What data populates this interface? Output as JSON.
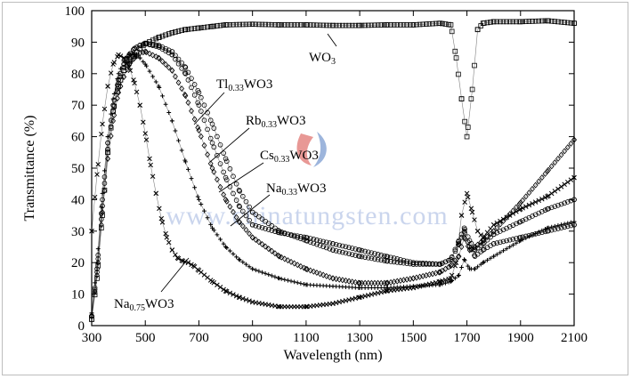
{
  "chart_data": {
    "type": "scatter",
    "xlabel": "Wavelength (nm)",
    "ylabel": "Transmittance (%)",
    "xlim": [
      300,
      2100
    ],
    "ylim": [
      0,
      100
    ],
    "xticks": [
      300,
      500,
      700,
      900,
      1100,
      1300,
      1500,
      1700,
      1900,
      2100
    ],
    "yticks": [
      0,
      10,
      20,
      30,
      40,
      50,
      60,
      70,
      80,
      90,
      100
    ],
    "grid": false,
    "legend": "none",
    "watermark": "www.chinatungsten.com",
    "annotations": [
      {
        "base": "WO",
        "sub": "",
        "tail": "3"
      },
      {
        "base": "Tl",
        "sub": "0.33",
        "tail": "WO3"
      },
      {
        "base": "Rb",
        "sub": "0.33",
        "tail": "WO3"
      },
      {
        "base": "Cs",
        "sub": "0.33",
        "tail": "WO3"
      },
      {
        "base": "Na",
        "sub": "0.33",
        "tail": "WO3"
      },
      {
        "base": "Na",
        "sub": "0.75",
        "tail": "WO3"
      }
    ],
    "series": [
      {
        "name": "WO3",
        "marker": "square",
        "x": [
          300,
          320,
          340,
          360,
          380,
          400,
          420,
          440,
          460,
          480,
          500,
          550,
          600,
          650,
          700,
          750,
          800,
          900,
          1000,
          1100,
          1200,
          1300,
          1400,
          1500,
          1600,
          1640,
          1660,
          1680,
          1700,
          1720,
          1740,
          1760,
          1800,
          1900,
          2000,
          2100
        ],
        "y": [
          2,
          15,
          35,
          55,
          68,
          76,
          81,
          84,
          86,
          88,
          89.5,
          91.5,
          93,
          94,
          94.5,
          95,
          95.5,
          95.7,
          95.5,
          95.5,
          95.3,
          95.3,
          95.5,
          95.5,
          96,
          95.5,
          85,
          72,
          60,
          75,
          94,
          96,
          96.5,
          96.5,
          96.8,
          96
        ]
      },
      {
        "name": "Tl0.33WO3",
        "marker": "circle",
        "x": [
          300,
          320,
          340,
          360,
          380,
          400,
          420,
          440,
          460,
          480,
          500,
          550,
          600,
          650,
          700,
          750,
          800,
          850,
          900,
          1000,
          1100,
          1200,
          1300,
          1400,
          1500,
          1600,
          1640,
          1670,
          1690,
          1710,
          1730,
          1760,
          1800,
          1900,
          2000,
          2100
        ],
        "y": [
          3,
          18,
          40,
          58,
          70,
          78,
          83,
          86,
          88,
          89,
          89.5,
          89,
          87,
          82,
          74,
          64,
          53,
          43,
          36,
          30,
          27,
          24,
          22,
          20.5,
          19.5,
          19.5,
          21,
          26,
          30,
          25,
          22,
          24,
          26,
          28,
          30,
          32
        ]
      },
      {
        "name": "Rb0.33WO3",
        "marker": "circle",
        "x": [
          300,
          320,
          340,
          360,
          380,
          400,
          420,
          440,
          460,
          480,
          500,
          550,
          600,
          650,
          700,
          750,
          800,
          850,
          900,
          1000,
          1100,
          1200,
          1300,
          1400,
          1500,
          1600,
          1640,
          1670,
          1690,
          1710,
          1730,
          1760,
          1800,
          1900,
          2000,
          2100
        ],
        "y": [
          3,
          17,
          38,
          56,
          68,
          77,
          82,
          86,
          88,
          89,
          89.5,
          88.5,
          86,
          80,
          70,
          58,
          47,
          38,
          32,
          29.5,
          28,
          26,
          24,
          22,
          20,
          19.5,
          21,
          27,
          31,
          27,
          24,
          26,
          29,
          33,
          37,
          40
        ]
      },
      {
        "name": "Cs0.33WO3",
        "marker": "diamond",
        "x": [
          300,
          320,
          340,
          360,
          380,
          400,
          420,
          440,
          460,
          480,
          500,
          550,
          600,
          650,
          700,
          750,
          800,
          850,
          900,
          1000,
          1100,
          1200,
          1300,
          1400,
          1500,
          1600,
          1640,
          1670,
          1690,
          1710,
          1730,
          1760,
          1800,
          1900,
          2000,
          2100
        ],
        "y": [
          3,
          16,
          36,
          53,
          65,
          74,
          79,
          83,
          85,
          86.5,
          87,
          85,
          81,
          73,
          62,
          50,
          40,
          33,
          28,
          22,
          18,
          15,
          13.5,
          13.5,
          15,
          17,
          19,
          22,
          28,
          24,
          25,
          27,
          30,
          39,
          49,
          59
        ]
      },
      {
        "name": "Na0.33WO3",
        "marker": "plus",
        "x": [
          300,
          320,
          340,
          360,
          380,
          400,
          420,
          440,
          460,
          480,
          500,
          550,
          600,
          650,
          700,
          750,
          800,
          850,
          900,
          1000,
          1100,
          1200,
          1300,
          1400,
          1500,
          1600,
          1640,
          1670,
          1690,
          1710,
          1730,
          1760,
          1800,
          1900,
          2000,
          2100
        ],
        "y": [
          4,
          20,
          42,
          60,
          72,
          80,
          84,
          86,
          86,
          85,
          83,
          76,
          65,
          52,
          40,
          31,
          25,
          21,
          18,
          15,
          13,
          12.5,
          12,
          12,
          12.5,
          13,
          14,
          16,
          21,
          18,
          18,
          20,
          22,
          27,
          31,
          33
        ]
      },
      {
        "name": "Na0.75WO3",
        "marker": "cross",
        "x": [
          300,
          320,
          340,
          360,
          380,
          400,
          420,
          440,
          460,
          480,
          500,
          520,
          540,
          560,
          580,
          600,
          620,
          640,
          660,
          680,
          700,
          750,
          800,
          850,
          900,
          1000,
          1100,
          1200,
          1300,
          1400,
          1500,
          1600,
          1640,
          1660,
          1680,
          1700,
          1720,
          1740,
          1760,
          1800,
          1900,
          2000,
          2100
        ],
        "y": [
          30,
          48,
          64,
          76,
          83,
          86,
          85,
          82,
          77,
          70,
          61,
          51,
          42,
          34,
          28,
          24,
          21.5,
          20.5,
          20,
          19,
          17.5,
          14,
          11,
          9,
          7.5,
          6,
          6,
          7,
          9,
          11,
          12,
          14,
          15,
          20,
          35,
          42,
          36,
          30,
          28,
          32,
          37,
          41,
          47
        ]
      }
    ]
  }
}
